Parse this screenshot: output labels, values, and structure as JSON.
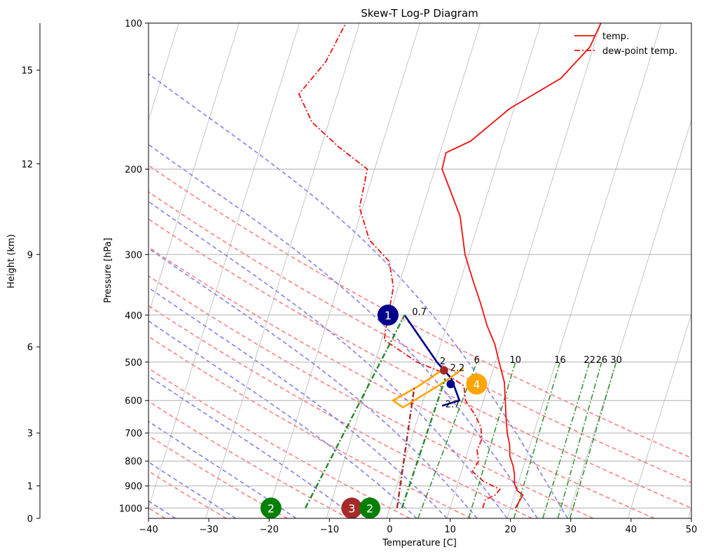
{
  "chart_data": {
    "type": "line",
    "title": "Skew-T Log-P Diagram",
    "xlabel": "Temperature [C]",
    "ylabel": "Pressure [hPa]",
    "height_axis_label": "Height (km)",
    "xlim": [
      -40,
      50
    ],
    "ylim": [
      1050,
      100
    ],
    "y_scale": "log",
    "skew_deg_per_decade": 25,
    "grid": true,
    "legend_position": "top-right",
    "x_ticks": [
      -40,
      -30,
      -20,
      -10,
      0,
      10,
      20,
      30,
      40,
      50
    ],
    "x_tick_labels": [
      "−40",
      "−30",
      "−20",
      "−10",
      "0",
      "10",
      "20",
      "30",
      "40",
      "50"
    ],
    "pressure_ticks": [
      100,
      200,
      300,
      400,
      500,
      600,
      700,
      800,
      900,
      1000
    ],
    "height_ticks_km": [
      0,
      1,
      3,
      6,
      9,
      12,
      15
    ],
    "height_tick_pressure_hpa": [
      1050,
      900,
      700,
      465,
      300,
      195,
      125
    ],
    "legend": [
      {
        "label": "temp.",
        "style": "solid",
        "color": "#ee1111"
      },
      {
        "label": "dew-point temp.",
        "style": "dashdot",
        "color": "#ee1111"
      }
    ],
    "series": [
      {
        "name": "temp.",
        "color": "#ee1111",
        "style": "solid",
        "points": [
          [
            1000,
            20.8
          ],
          [
            970,
            21.1
          ],
          [
            940,
            21.4
          ],
          [
            920,
            20.2
          ],
          [
            890,
            19.4
          ],
          [
            850,
            18.9
          ],
          [
            820,
            18.3
          ],
          [
            780,
            17.2
          ],
          [
            740,
            16.6
          ],
          [
            700,
            15.6
          ],
          [
            650,
            14.6
          ],
          [
            600,
            13.6
          ],
          [
            550,
            12.5
          ],
          [
            500,
            10.6
          ],
          [
            460,
            9.0
          ],
          [
            420,
            6.7
          ],
          [
            380,
            4.6
          ],
          [
            340,
            2.1
          ],
          [
            300,
            -0.6
          ],
          [
            250,
            -3.4
          ],
          [
            200,
            -8.8
          ],
          [
            185,
            -9.0
          ],
          [
            175,
            -5.5
          ],
          [
            150,
            -0.7
          ],
          [
            130,
            6.2
          ],
          [
            112,
            9.4
          ],
          [
            100,
            10.0
          ]
        ]
      },
      {
        "name": "dew-point temp.",
        "color": "#ee1111",
        "style": "dashdot",
        "points": [
          [
            1000,
            15.4
          ],
          [
            960,
            15.4
          ],
          [
            940,
            16.8
          ],
          [
            915,
            17.3
          ],
          [
            880,
            14.1
          ],
          [
            840,
            11.8
          ],
          [
            800,
            12.3
          ],
          [
            760,
            11.5
          ],
          [
            720,
            11.7
          ],
          [
            680,
            10.9
          ],
          [
            640,
            9.2
          ],
          [
            600,
            7.0
          ],
          [
            560,
            6.0
          ],
          [
            530,
            2.6
          ],
          [
            500,
            -3.0
          ],
          [
            450,
            -9.6
          ],
          [
            400,
            -10.2
          ],
          [
            350,
            -10.8
          ],
          [
            310,
            -12.8
          ],
          [
            280,
            -17.2
          ],
          [
            240,
            -20.5
          ],
          [
            200,
            -21.2
          ],
          [
            180,
            -27.1
          ],
          [
            160,
            -32.8
          ],
          [
            140,
            -36.4
          ],
          [
            120,
            -33.6
          ],
          [
            100,
            -32.3
          ]
        ]
      }
    ],
    "background": {
      "isotherm_color": "#b0b0b0",
      "dry_adiabat_color": "#ff6060",
      "moist_adiabat_color": "#5555ee",
      "mixing_ratio_color": "#228822",
      "dry_adiabat_surface_temps_c": [
        -40,
        -30,
        -20,
        -10,
        0,
        10,
        20,
        30,
        40,
        50,
        60,
        70
      ],
      "moist_adiabat_surface_temps_c": [
        -35,
        -25,
        -15,
        -5,
        5,
        10,
        15,
        20,
        25,
        30
      ],
      "mixing_ratio_labels": [
        "6",
        "10",
        "16",
        "22",
        "26",
        "30"
      ],
      "mixing_ratio_lines": [
        {
          "label": "6",
          "temp_top_c": 6.9,
          "temp_bottom_c": 5.2
        },
        {
          "label": "10",
          "temp_top_c": 13.3,
          "temp_bottom_c": 13.6
        },
        {
          "label": "16",
          "temp_top_c": 20.7,
          "temp_bottom_c": 21.1
        },
        {
          "label": "22",
          "temp_top_c": 25.6,
          "temp_bottom_c": 25.9
        },
        {
          "label": "26",
          "temp_top_c": 27.6,
          "temp_bottom_c": 28.4
        },
        {
          "label": "30",
          "temp_top_c": 30.0,
          "temp_bottom_c": 30.4
        }
      ]
    },
    "parcel_paths": [
      {
        "name": "path-1",
        "color": "#00008b",
        "style": "solid",
        "points": [
          [
            400,
            -7.5
          ],
          [
            500,
            0.3
          ],
          [
            540,
            3.5
          ],
          [
            600,
            6.0
          ],
          [
            615,
            3.4
          ]
        ]
      },
      {
        "name": "path-4",
        "color": "#ffa500",
        "style": "solid",
        "points": [
          [
            520,
            1.5
          ],
          [
            560,
            -1.5
          ],
          [
            600,
            -5.0
          ],
          [
            620,
            -3.0
          ],
          [
            550,
            2.5
          ],
          [
            515,
            5.0
          ]
        ]
      },
      {
        "name": "path-2-green-a",
        "color": "#228822",
        "style": "dashdot",
        "points": [
          [
            1000,
            -14.0
          ],
          [
            400,
            -7.5
          ]
        ]
      },
      {
        "name": "path-2-green-b",
        "color": "#228822",
        "style": "dashdot",
        "points": [
          [
            1000,
            2.0
          ],
          [
            540,
            2.5
          ]
        ]
      },
      {
        "name": "path-3-brown",
        "color": "#a52a2a",
        "style": "dashdot",
        "points": [
          [
            1000,
            1.2
          ],
          [
            560,
            -2.2
          ]
        ]
      }
    ],
    "markers": [
      {
        "label": "1",
        "color": "#00008b",
        "pressure": 400,
        "x_at_p": -0.3
      },
      {
        "label": "2",
        "color": "#008000",
        "pressure": 1000,
        "x_at_p": -19.7
      },
      {
        "label": "3",
        "color": "#a52a2a",
        "pressure": 1000,
        "x_at_p": -6.3
      },
      {
        "label": "2",
        "color": "#008000",
        "pressure": 1000,
        "x_at_p": -3.3
      },
      {
        "label": "4",
        "color": "#ffa500",
        "pressure": 555,
        "x_at_p": 14.4
      }
    ],
    "points": [
      {
        "color": "#a52a2a",
        "pressure": 520,
        "x_at_p": 9.0
      },
      {
        "color": "#00008b",
        "pressure": 555,
        "x_at_p": 10.1
      }
    ],
    "annotations": [
      {
        "text": "0.7",
        "pressure": 393,
        "x_at_p": 3.7
      },
      {
        "text": "2",
        "pressure": 497,
        "x_at_p": 8.3
      },
      {
        "text": "2.2",
        "pressure": 513,
        "x_at_p": 10.0
      },
      {
        "text": "2.7",
        "pressure": 610,
        "x_at_p": 9.2
      }
    ]
  }
}
